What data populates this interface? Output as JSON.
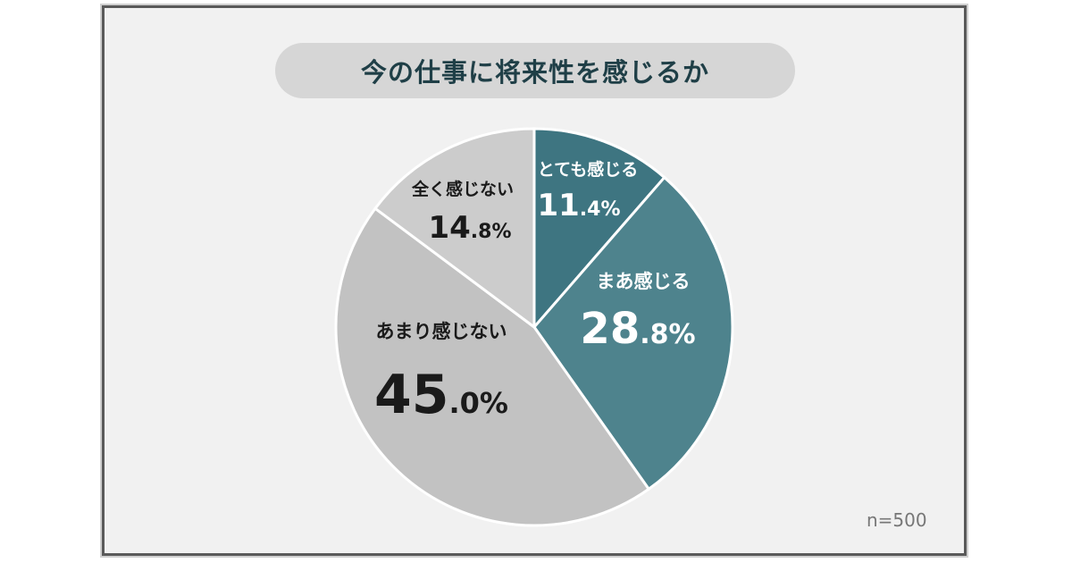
{
  "chart_data": {
    "type": "pie",
    "title": "今の仕事に将来性を感じるか",
    "note": "n=500",
    "slices": [
      {
        "label": "とても感じる",
        "value": 11.4,
        "int": "11",
        "dec": ".4%",
        "color": "#3e7581",
        "text_color": "#ffffff"
      },
      {
        "label": "まあ感じる",
        "value": 28.8,
        "int": "28",
        "dec": ".8%",
        "color": "#4e838d",
        "text_color": "#ffffff"
      },
      {
        "label": "あまり感じない",
        "value": 45.0,
        "int": "45",
        "dec": ".0%",
        "color": "#c2c2c2",
        "text_color": "#1a1a1a"
      },
      {
        "label": "全く感じない",
        "value": 14.8,
        "int": "14",
        "dec": ".8%",
        "color": "#cccccc",
        "text_color": "#1a1a1a"
      }
    ]
  }
}
